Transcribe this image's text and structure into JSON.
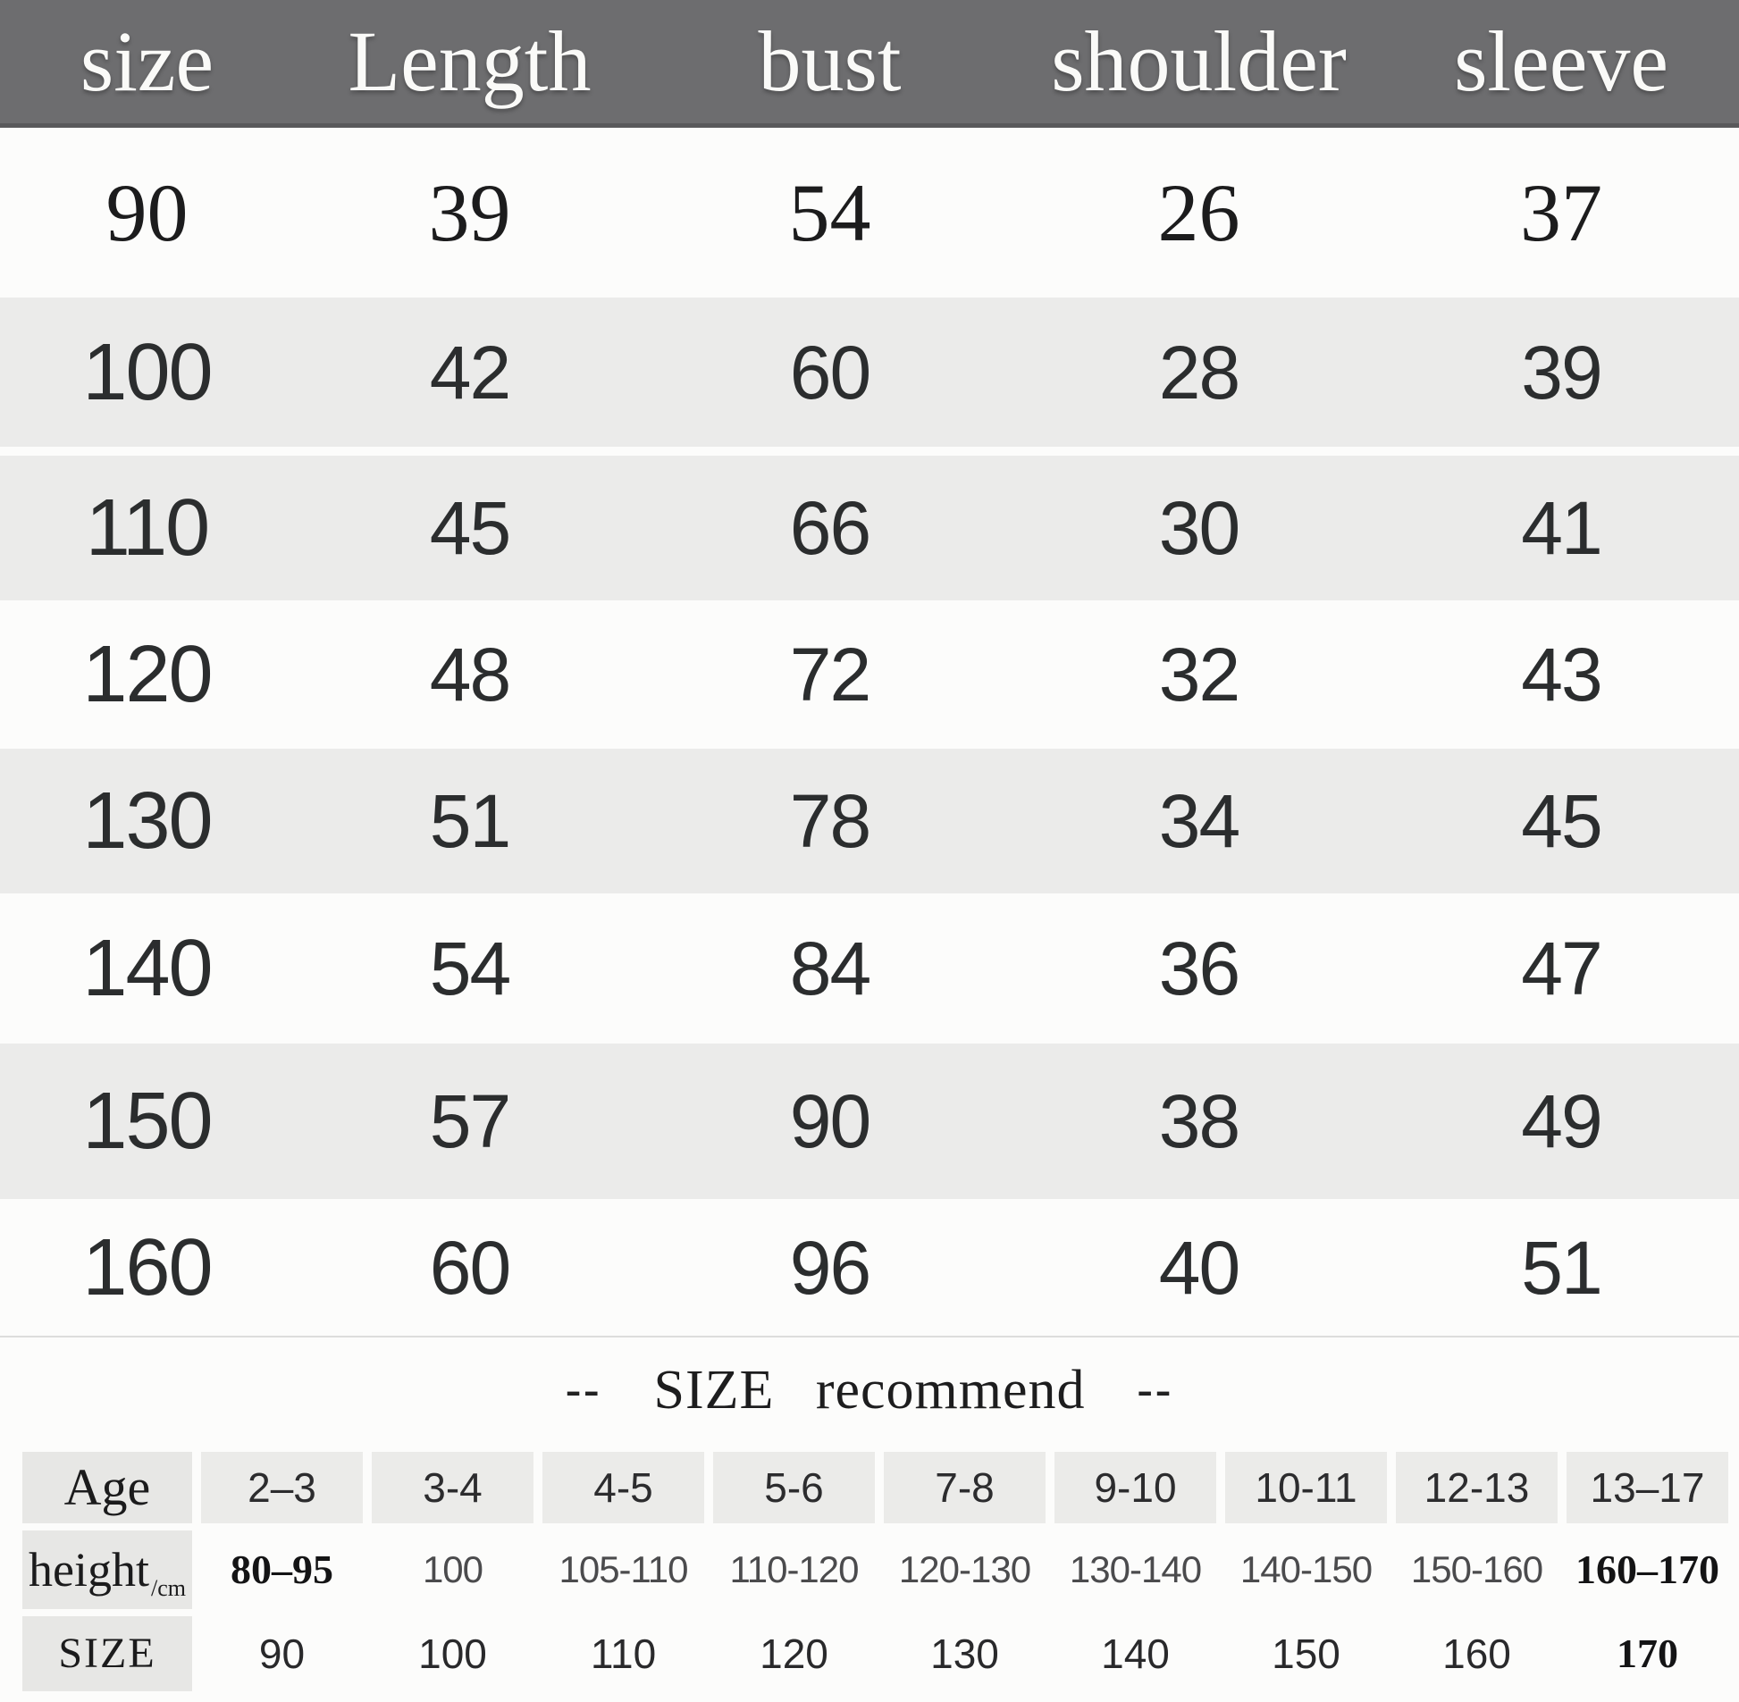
{
  "colors": {
    "header_bg": "#6d6d6f",
    "header_text": "#fafaf8",
    "stripe_gray": "#ebebea",
    "page_bg": "#fcfcfb",
    "label_block_bg": "#e7e7e5",
    "age_block_bg": "#ebebe9",
    "number_text": "#2b2d2e"
  },
  "main_table": {
    "columns": [
      "size",
      "Length",
      "bust",
      "shoulder",
      "sleeve"
    ],
    "rows": [
      {
        "size": "90",
        "length": "39",
        "bust": "54",
        "shoulder": "26",
        "sleeve": "37"
      },
      {
        "size": "100",
        "length": "42",
        "bust": "60",
        "shoulder": "28",
        "sleeve": "39"
      },
      {
        "size": "110",
        "length": "45",
        "bust": "66",
        "shoulder": "30",
        "sleeve": "41"
      },
      {
        "size": "120",
        "length": "48",
        "bust": "72",
        "shoulder": "32",
        "sleeve": "43"
      },
      {
        "size": "130",
        "length": "51",
        "bust": "78",
        "shoulder": "34",
        "sleeve": "45"
      },
      {
        "size": "140",
        "length": "54",
        "bust": "84",
        "shoulder": "36",
        "sleeve": "47"
      },
      {
        "size": "150",
        "length": "57",
        "bust": "90",
        "shoulder": "38",
        "sleeve": "49"
      },
      {
        "size": "160",
        "length": "60",
        "bust": "96",
        "shoulder": "40",
        "sleeve": "51"
      }
    ]
  },
  "recommend": {
    "dash_left": "--",
    "title": "SIZE recommend",
    "dash_right": "--",
    "labels": {
      "age": "Age",
      "height_main": "height",
      "height_sub": "/cm",
      "size": "SIZE"
    },
    "age": [
      "2–3",
      "3-4",
      "4-5",
      "5-6",
      "7-8",
      "9-10",
      "10-11",
      "12-13",
      "13–17"
    ],
    "height": [
      "80–95",
      "100",
      "105-110",
      "110-120",
      "120-130",
      "130-140",
      "140-150",
      "150-160",
      "160–170"
    ],
    "size": [
      "90",
      "100",
      "110",
      "120",
      "130",
      "140",
      "150",
      "160",
      "170"
    ]
  },
  "chart_data": [
    {
      "type": "table",
      "title": "Garment measurements (cm)",
      "columns": [
        "size",
        "Length",
        "bust",
        "shoulder",
        "sleeve"
      ],
      "rows": [
        [
          90,
          39,
          54,
          26,
          37
        ],
        [
          100,
          42,
          60,
          28,
          39
        ],
        [
          110,
          45,
          66,
          30,
          41
        ],
        [
          120,
          48,
          72,
          32,
          43
        ],
        [
          130,
          51,
          78,
          34,
          45
        ],
        [
          140,
          54,
          84,
          36,
          47
        ],
        [
          150,
          57,
          90,
          38,
          49
        ],
        [
          160,
          60,
          96,
          40,
          51
        ]
      ]
    },
    {
      "type": "table",
      "title": "SIZE recommend",
      "columns": [
        "Age",
        "height/cm",
        "SIZE"
      ],
      "rows": [
        [
          "2-3",
          "80-95",
          90
        ],
        [
          "3-4",
          "100",
          100
        ],
        [
          "4-5",
          "105-110",
          110
        ],
        [
          "5-6",
          "110-120",
          120
        ],
        [
          "7-8",
          "120-130",
          130
        ],
        [
          "9-10",
          "130-140",
          140
        ],
        [
          "10-11",
          "140-150",
          150
        ],
        [
          "12-13",
          "150-160",
          160
        ],
        [
          "13-17",
          "160-170",
          170
        ]
      ]
    }
  ]
}
